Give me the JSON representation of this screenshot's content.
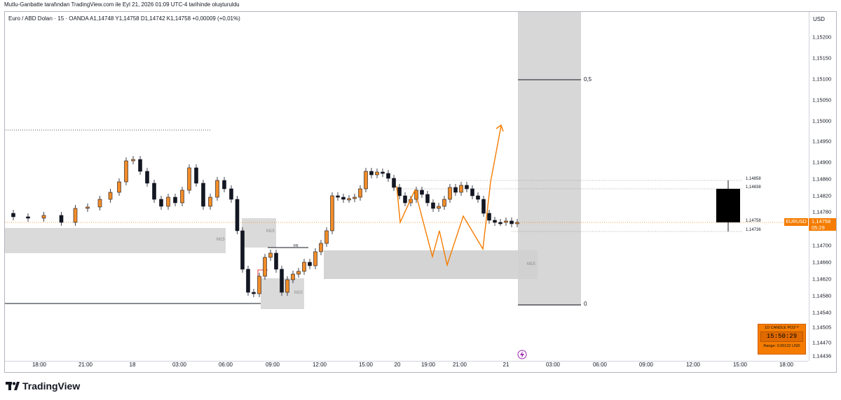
{
  "header": {
    "attribution": "Mutlu-Ganbatte tarafından TradingView.com ile Eyl 21, 2026 01:09 UTC-4 tarihinde oluşturuldu"
  },
  "legend": {
    "text": "Euro / ABD Doları · 15 · OANDA  A1,14748  Y1,14758  D1,14742  K1,14758  +0,00009 (+0,01%)"
  },
  "price_axis": {
    "currency": "USD",
    "labels": [
      "1,15200",
      "1,15150",
      "1,15100",
      "1,15050",
      "1,15000",
      "1,14950",
      "1,14900",
      "1,14860",
      "1,14820",
      "1,14780",
      "1,14740",
      "1,14700",
      "1,14660",
      "1,14620",
      "1,14580",
      "1,14540",
      "1,14505",
      "1,14470",
      "1,14436"
    ]
  },
  "time_axis": {
    "labels": [
      "18:00",
      "21:00",
      "18",
      "03:00",
      "06:00",
      "09:00",
      "12:00",
      "15:00",
      "20",
      "19:00",
      "21:00",
      "21",
      "03:00",
      "06:00",
      "09:00",
      "12:00",
      "15:00",
      "18:00"
    ]
  },
  "current": {
    "symbol": "EURUSD",
    "price": "1,14758",
    "countdown": "05:29"
  },
  "annotations": {
    "fib_top": "0,5",
    "fib_bottom": "0",
    "level_1": "1,14858",
    "level_2": "1,14838",
    "level_3": "1,14758",
    "level_4": "1,14736",
    "zone_label": "M15",
    "fr_label": "FR"
  },
  "widget": {
    "title": "1D CANDLE PO3™",
    "clock": "15:50:29",
    "range": "Range: 0.00122 USD"
  },
  "brand": {
    "name": "TradingView"
  },
  "colors": {
    "accent": "#f57c00",
    "candle": "#131722",
    "zone": "#d1d1d1"
  }
}
